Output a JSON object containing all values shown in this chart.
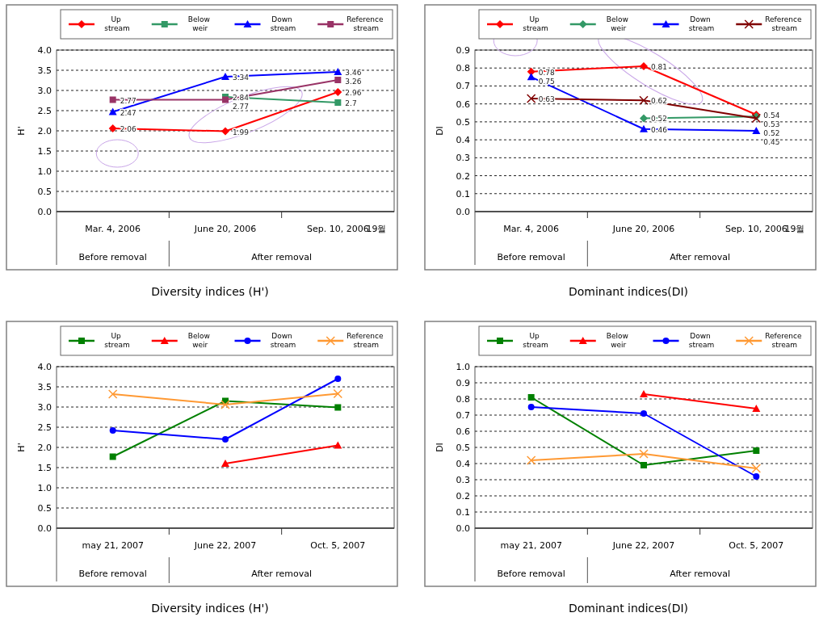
{
  "chart_data": [
    {
      "type": "line",
      "title": "Diversity indices (H')",
      "ylabel": "H'",
      "categories": [
        "Mar. 4, 2006",
        "June 20, 2006",
        "Sep. 10, 2006"
      ],
      "ylim": [
        0,
        4
      ],
      "yticks": [
        {
          "value": 0,
          "label": "0.0"
        },
        {
          "value": 0.5,
          "label": "0.5"
        },
        {
          "value": 1,
          "label": "1.0"
        },
        {
          "value": 1.5,
          "label": "1.5"
        },
        {
          "value": 2,
          "label": "2.0"
        },
        {
          "value": 2.5,
          "label": "2.5"
        },
        {
          "value": 3,
          "label": "3.0"
        },
        {
          "value": 3.5,
          "label": "3.5"
        },
        {
          "value": 4,
          "label": "4.0"
        }
      ],
      "grid": "y",
      "legend": "top",
      "data_labels": true,
      "line_style": "solid",
      "annotations": [
        "19월",
        "Before removal",
        "After removal"
      ],
      "series": [
        {
          "name": "Up stream",
          "color": "#ff0000",
          "marker": "diamond",
          "values": [
            2.06,
            1.99,
            2.96
          ]
        },
        {
          "name": "Below weir",
          "color": "#339966",
          "marker": "square",
          "values": [
            null,
            2.84,
            2.7
          ]
        },
        {
          "name": "Down stream",
          "color": "#0000ff",
          "marker": "triangle",
          "values": [
            2.47,
            3.34,
            3.46
          ]
        },
        {
          "name": "Reference stream",
          "color": "#993366",
          "marker": "square",
          "values": [
            2.77,
            2.77,
            3.26
          ]
        }
      ]
    },
    {
      "type": "line",
      "title": "Dominant indices(DI)",
      "ylabel": "DI",
      "categories": [
        "Mar. 4, 2006",
        "June 20, 2006",
        "Sep. 10, 2006"
      ],
      "ylim": [
        0,
        0.9
      ],
      "yticks": [
        {
          "value": 0,
          "label": "0.0"
        },
        {
          "value": 0.1,
          "label": "0.1"
        },
        {
          "value": 0.2,
          "label": "0.2"
        },
        {
          "value": 0.3,
          "label": "0.3"
        },
        {
          "value": 0.4,
          "label": "0.4"
        },
        {
          "value": 0.5,
          "label": "0.5"
        },
        {
          "value": 0.6,
          "label": "0.6"
        },
        {
          "value": 0.7,
          "label": "0.7"
        },
        {
          "value": 0.8,
          "label": "0.8"
        },
        {
          "value": 0.9,
          "label": "0.9"
        }
      ],
      "grid": "y",
      "legend": "top",
      "data_labels": true,
      "line_style": "solid",
      "annotations": [
        "19월",
        "Before removal",
        "After removal"
      ],
      "series": [
        {
          "name": "Up stream",
          "color": "#ff0000",
          "marker": "diamond",
          "values": [
            0.78,
            0.81,
            0.54
          ]
        },
        {
          "name": "Below weir",
          "color": "#339966",
          "marker": "diamond",
          "values": [
            null,
            0.52,
            0.53
          ]
        },
        {
          "name": "Down stream",
          "color": "#0000ff",
          "marker": "triangle",
          "values": [
            0.75,
            0.46,
            0.45
          ]
        },
        {
          "name": "Reference stream",
          "color": "#800000",
          "marker": "cross",
          "values": [
            0.63,
            0.62,
            0.52
          ]
        }
      ]
    },
    {
      "type": "line",
      "title": "Diversity indices (H')",
      "ylabel": "H'",
      "categories": [
        "may 21, 2007",
        "June 22, 2007",
        "Oct. 5, 2007"
      ],
      "ylim": [
        0,
        4
      ],
      "yticks": [
        {
          "value": 0,
          "label": "0.0"
        },
        {
          "value": 0.5,
          "label": "0.5"
        },
        {
          "value": 1,
          "label": "1.0"
        },
        {
          "value": 1.5,
          "label": "1.5"
        },
        {
          "value": 2,
          "label": "2.0"
        },
        {
          "value": 2.5,
          "label": "2.5"
        },
        {
          "value": 3,
          "label": "3.0"
        },
        {
          "value": 3.5,
          "label": "3.5"
        },
        {
          "value": 4,
          "label": "4.0"
        }
      ],
      "grid": "y",
      "legend": "top",
      "line_style": "solid",
      "annotations": [
        "Before removal",
        "After removal"
      ],
      "series": [
        {
          "name": "Up stream",
          "color": "#008000",
          "marker": "square",
          "values": [
            1.77,
            3.15,
            2.99
          ]
        },
        {
          "name": "Below weir",
          "color": "#ff0000",
          "marker": "triangle",
          "values": [
            null,
            1.6,
            2.05
          ]
        },
        {
          "name": "Down stream",
          "color": "#0000ff",
          "marker": "circle",
          "values": [
            2.42,
            2.2,
            3.7
          ]
        },
        {
          "name": "Reference stream",
          "color": "#ff9933",
          "marker": "cross",
          "values": [
            3.32,
            3.06,
            3.33
          ]
        }
      ]
    },
    {
      "type": "line",
      "title": "Dominant indices(DI)",
      "ylabel": "DI",
      "categories": [
        "may 21, 2007",
        "June 22, 2007",
        "Oct. 5, 2007"
      ],
      "ylim": [
        0,
        1
      ],
      "yticks": [
        {
          "value": 0,
          "label": "0.0"
        },
        {
          "value": 0.1,
          "label": "0.1"
        },
        {
          "value": 0.2,
          "label": "0.2"
        },
        {
          "value": 0.3,
          "label": "0.3"
        },
        {
          "value": 0.4,
          "label": "0.4"
        },
        {
          "value": 0.5,
          "label": "0.5"
        },
        {
          "value": 0.6,
          "label": "0.6"
        },
        {
          "value": 0.7,
          "label": "0.7"
        },
        {
          "value": 0.8,
          "label": "0.8"
        },
        {
          "value": 0.9,
          "label": "0.9"
        },
        {
          "value": 1,
          "label": "1.0"
        }
      ],
      "grid": "y",
      "legend": "top",
      "line_style": "solid",
      "annotations": [
        "Before removal",
        "After removal"
      ],
      "series": [
        {
          "name": "Up stream",
          "color": "#008000",
          "marker": "square",
          "values": [
            0.81,
            0.39,
            0.48
          ]
        },
        {
          "name": "Below weir",
          "color": "#ff0000",
          "marker": "triangle",
          "values": [
            null,
            0.83,
            0.74
          ]
        },
        {
          "name": "Down stream",
          "color": "#0000ff",
          "marker": "circle",
          "values": [
            0.75,
            0.71,
            0.32
          ]
        },
        {
          "name": "Reference stream",
          "color": "#ff9933",
          "marker": "cross",
          "values": [
            0.42,
            0.46,
            0.37
          ]
        }
      ]
    }
  ]
}
